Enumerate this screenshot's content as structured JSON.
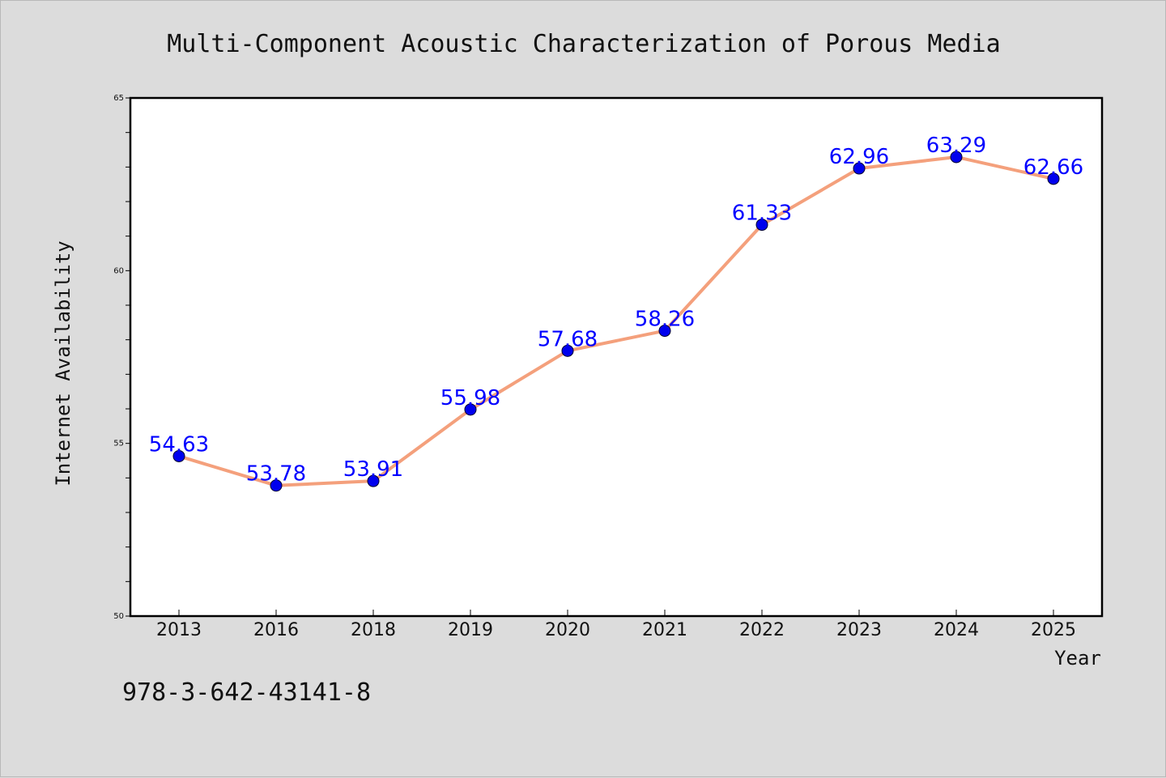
{
  "chart_data": {
    "type": "line",
    "title": "Multi-Component Acoustic Characterization of Porous Media",
    "xlabel": "Year",
    "ylabel": "Internet Availability",
    "categories": [
      "2013",
      "2016",
      "2018",
      "2019",
      "2020",
      "2021",
      "2022",
      "2023",
      "2024",
      "2025"
    ],
    "values": [
      54.63,
      53.78,
      53.91,
      55.98,
      57.68,
      58.26,
      61.33,
      62.96,
      63.29,
      62.66
    ],
    "data_labels": [
      "54.63",
      "53.78",
      "53.91",
      "55.98",
      "57.68",
      "58.26",
      "61.33",
      "62.96",
      "63.29",
      "62.66"
    ],
    "ylim": [
      50,
      65
    ],
    "yticks": [
      "50",
      "55",
      "60",
      "65"
    ],
    "grid": false,
    "line_color": "#f4a07c",
    "marker_color": "#0000ee",
    "label_color": "#0000ff"
  },
  "footnote": "978-3-642-43141-8"
}
